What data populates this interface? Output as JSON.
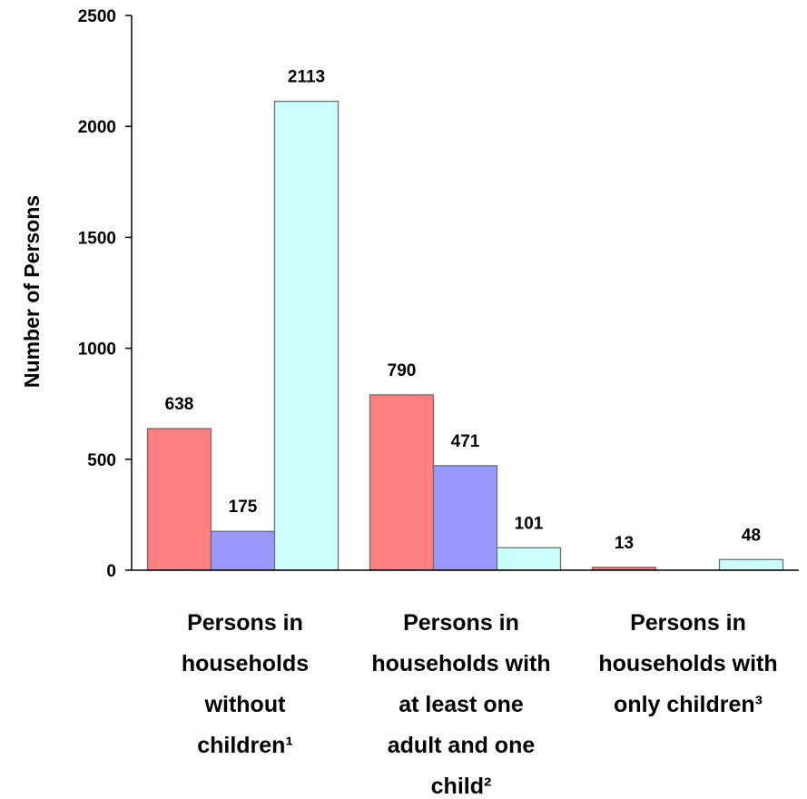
{
  "chart_data": {
    "type": "bar",
    "title": "",
    "xlabel": "",
    "ylabel": "Number of Persons",
    "ylim": [
      0,
      2500
    ],
    "yticks": [
      0,
      500,
      1000,
      1500,
      2000,
      2500
    ],
    "grid": false,
    "legend": "none",
    "categories": [
      [
        "Persons in",
        "households",
        "without",
        "children¹"
      ],
      [
        "Persons in",
        "households with",
        "at least one",
        "adult and one",
        "child²"
      ],
      [
        "Persons in",
        "households with",
        "only children³"
      ]
    ],
    "series": [
      {
        "color": "#ff8080",
        "values": [
          638,
          790,
          13
        ]
      },
      {
        "color": "#9999ff",
        "values": [
          175,
          471,
          null
        ]
      },
      {
        "color": "#ccffff",
        "values": [
          2113,
          101,
          48
        ]
      }
    ]
  }
}
